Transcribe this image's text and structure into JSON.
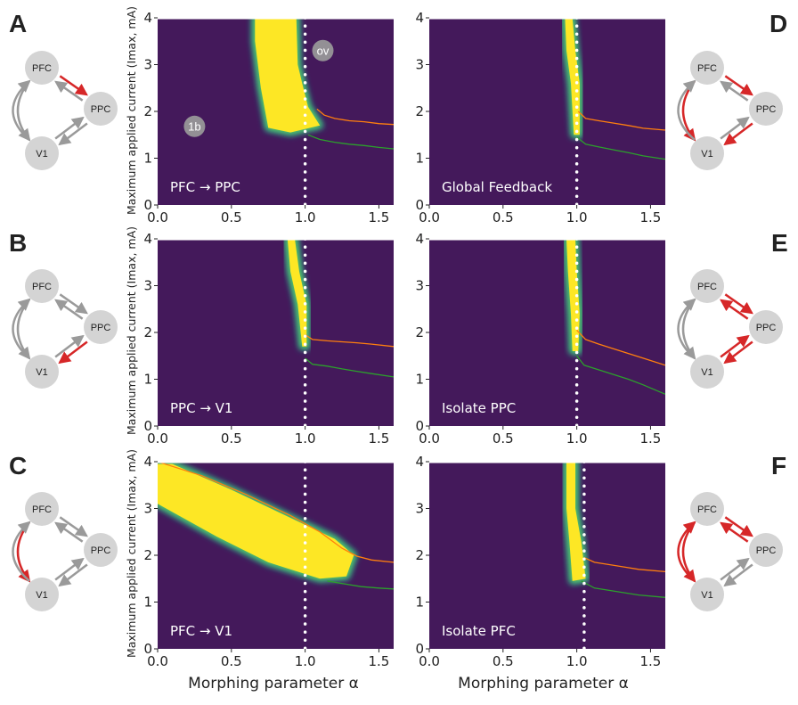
{
  "figure": {
    "xlabel_left": "Morphing parameter α",
    "xlabel_right": "Morphing parameter α",
    "ylabel": "Maximum applied current (Imax, mA)",
    "colors": {
      "background": "#44195b",
      "blob_core": "#fde725",
      "blob_mid": "#5ec962",
      "blob_edge": "#21918c",
      "orange_line": "#ff7f0e",
      "green_line": "#2ca02c",
      "dashed_line": "#ffffff",
      "node_fill": "#d4d4d4",
      "arrow_grey": "#9a9a9a",
      "arrow_red": "#d62728"
    }
  },
  "chart_data": [
    {
      "panel": "A",
      "type": "heatmap",
      "label": "PFC → PPC",
      "xlim": [
        0,
        1.6
      ],
      "ylim": [
        0,
        4
      ],
      "xticks": [
        "0.0",
        "0.5",
        "1.0",
        "1.5"
      ],
      "yticks": [
        "0",
        "1",
        "2",
        "3",
        "4"
      ],
      "dashed_x": 1.0,
      "markers": [
        {
          "text": "ov",
          "x": 1.12,
          "y": 3.3
        },
        {
          "text": "1b",
          "x": 0.25,
          "y": 1.68
        }
      ],
      "blob": [
        [
          0.66,
          4.0
        ],
        [
          0.77,
          4.0
        ],
        [
          0.94,
          4.0
        ],
        [
          0.95,
          3.0
        ],
        [
          0.98,
          2.6
        ],
        [
          1.02,
          2.1
        ],
        [
          1.1,
          1.7
        ],
        [
          0.9,
          1.55
        ],
        [
          0.75,
          1.65
        ],
        [
          0.7,
          2.5
        ],
        [
          0.66,
          3.5
        ]
      ],
      "orange": [
        [
          1.08,
          2.05
        ],
        [
          1.13,
          1.92
        ],
        [
          1.2,
          1.85
        ],
        [
          1.3,
          1.8
        ],
        [
          1.4,
          1.78
        ],
        [
          1.5,
          1.74
        ],
        [
          1.6,
          1.72
        ]
      ],
      "green": [
        [
          1.02,
          1.5
        ],
        [
          1.1,
          1.4
        ],
        [
          1.2,
          1.34
        ],
        [
          1.3,
          1.3
        ],
        [
          1.4,
          1.27
        ],
        [
          1.5,
          1.23
        ],
        [
          1.6,
          1.2
        ]
      ],
      "diagram": {
        "red": [
          "PFC-PPC"
        ],
        "double_red": []
      }
    },
    {
      "panel": "D",
      "type": "heatmap",
      "label": "Global Feedback",
      "xlim": [
        0,
        1.6
      ],
      "ylim": [
        0,
        4
      ],
      "xticks": [
        "0.0",
        "0.5",
        "1.0",
        "1.5"
      ],
      "yticks": [
        "0",
        "1",
        "2",
        "3",
        "4"
      ],
      "dashed_x": 1.0,
      "markers": [],
      "blob": [
        [
          0.92,
          4.0
        ],
        [
          0.97,
          4.0
        ],
        [
          0.99,
          3.3
        ],
        [
          1.02,
          2.6
        ],
        [
          1.02,
          1.5
        ],
        [
          0.98,
          1.5
        ],
        [
          0.96,
          2.6
        ],
        [
          0.93,
          3.3
        ]
      ],
      "orange": [
        [
          1.01,
          2.0
        ],
        [
          1.06,
          1.85
        ],
        [
          1.15,
          1.8
        ],
        [
          1.25,
          1.75
        ],
        [
          1.35,
          1.7
        ],
        [
          1.45,
          1.64
        ],
        [
          1.6,
          1.6
        ]
      ],
      "green": [
        [
          1.0,
          1.45
        ],
        [
          1.06,
          1.3
        ],
        [
          1.15,
          1.24
        ],
        [
          1.25,
          1.18
        ],
        [
          1.35,
          1.12
        ],
        [
          1.45,
          1.05
        ],
        [
          1.6,
          0.98
        ]
      ],
      "diagram": {
        "red": [
          "PFC-PPC",
          "PPC-V1",
          "PFC-V1"
        ],
        "double_red": []
      }
    },
    {
      "panel": "B",
      "type": "heatmap",
      "label": "PPC → V1",
      "xlim": [
        0,
        1.6
      ],
      "ylim": [
        0,
        4
      ],
      "xticks": [
        "0.0",
        "0.5",
        "1.0",
        "1.5"
      ],
      "yticks": [
        "0",
        "1",
        "2",
        "3",
        "4"
      ],
      "dashed_x": 1.0,
      "markers": [],
      "blob": [
        [
          0.88,
          4.0
        ],
        [
          0.93,
          4.0
        ],
        [
          0.96,
          3.3
        ],
        [
          1.01,
          2.6
        ],
        [
          1.01,
          1.7
        ],
        [
          0.98,
          1.7
        ],
        [
          0.95,
          2.6
        ],
        [
          0.9,
          3.3
        ]
      ],
      "orange": [
        [
          1.0,
          1.95
        ],
        [
          1.05,
          1.85
        ],
        [
          1.15,
          1.82
        ],
        [
          1.25,
          1.8
        ],
        [
          1.35,
          1.78
        ],
        [
          1.45,
          1.75
        ],
        [
          1.6,
          1.7
        ]
      ],
      "green": [
        [
          1.0,
          1.45
        ],
        [
          1.05,
          1.32
        ],
        [
          1.15,
          1.28
        ],
        [
          1.25,
          1.22
        ],
        [
          1.35,
          1.17
        ],
        [
          1.45,
          1.12
        ],
        [
          1.6,
          1.05
        ]
      ],
      "diagram": {
        "red": [
          "PPC-V1"
        ],
        "double_red": []
      }
    },
    {
      "panel": "E",
      "type": "heatmap",
      "label": "Isolate PPC",
      "xlim": [
        0,
        1.6
      ],
      "ylim": [
        0,
        4
      ],
      "xticks": [
        "0.0",
        "0.5",
        "1.0",
        "1.5"
      ],
      "yticks": [
        "0",
        "1",
        "2",
        "3",
        "4"
      ],
      "dashed_x": 1.0,
      "markers": [],
      "blob": [
        [
          0.93,
          4.0
        ],
        [
          0.99,
          4.0
        ],
        [
          1.0,
          3.3
        ],
        [
          1.02,
          2.4
        ],
        [
          1.01,
          1.6
        ],
        [
          0.97,
          1.6
        ],
        [
          0.96,
          2.4
        ],
        [
          0.94,
          3.3
        ]
      ],
      "orange": [
        [
          1.0,
          2.05
        ],
        [
          1.06,
          1.85
        ],
        [
          1.15,
          1.75
        ],
        [
          1.25,
          1.65
        ],
        [
          1.35,
          1.55
        ],
        [
          1.45,
          1.45
        ],
        [
          1.6,
          1.3
        ]
      ],
      "green": [
        [
          1.0,
          1.5
        ],
        [
          1.05,
          1.3
        ],
        [
          1.15,
          1.2
        ],
        [
          1.25,
          1.1
        ],
        [
          1.35,
          1.0
        ],
        [
          1.45,
          0.88
        ],
        [
          1.6,
          0.68
        ]
      ],
      "diagram": {
        "red": [],
        "double_red": [
          "PFC-PPC",
          "PPC-V1"
        ]
      }
    },
    {
      "panel": "C",
      "type": "heatmap",
      "label": "PFC → V1",
      "xlim": [
        0,
        1.6
      ],
      "ylim": [
        0,
        4
      ],
      "xticks": [
        "0.0",
        "0.5",
        "1.0",
        "1.5"
      ],
      "yticks": [
        "0",
        "1",
        "2",
        "3",
        "4"
      ],
      "dashed_x": 1.0,
      "markers": [],
      "blob": [
        [
          0.0,
          3.95
        ],
        [
          0.1,
          3.95
        ],
        [
          0.5,
          3.4
        ],
        [
          0.9,
          2.8
        ],
        [
          1.2,
          2.35
        ],
        [
          1.33,
          2.0
        ],
        [
          1.28,
          1.55
        ],
        [
          1.1,
          1.5
        ],
        [
          0.75,
          1.85
        ],
        [
          0.4,
          2.4
        ],
        [
          0.0,
          3.1
        ]
      ],
      "orange": [
        [
          0.0,
          4.0
        ],
        [
          0.3,
          3.7
        ],
        [
          0.6,
          3.3
        ],
        [
          0.9,
          2.85
        ],
        [
          1.1,
          2.5
        ],
        [
          1.25,
          2.15
        ],
        [
          1.35,
          1.98
        ],
        [
          1.45,
          1.9
        ],
        [
          1.6,
          1.85
        ]
      ],
      "green": [
        [
          1.15,
          1.45
        ],
        [
          1.28,
          1.38
        ],
        [
          1.38,
          1.33
        ],
        [
          1.5,
          1.3
        ],
        [
          1.6,
          1.28
        ]
      ],
      "diagram": {
        "red": [
          "PFC-V1"
        ],
        "double_red": []
      }
    },
    {
      "panel": "F",
      "type": "heatmap",
      "label": "Isolate PFC",
      "xlim": [
        0,
        1.6
      ],
      "ylim": [
        0,
        4
      ],
      "xticks": [
        "0.0",
        "0.5",
        "1.0",
        "1.5"
      ],
      "yticks": [
        "0",
        "1",
        "2",
        "3",
        "4"
      ],
      "dashed_x": 1.05,
      "markers": [],
      "blob": [
        [
          0.93,
          4.0
        ],
        [
          0.99,
          4.0
        ],
        [
          0.99,
          3.0
        ],
        [
          1.03,
          2.3
        ],
        [
          1.06,
          1.5
        ],
        [
          0.97,
          1.45
        ],
        [
          0.95,
          2.3
        ],
        [
          0.93,
          3.0
        ]
      ],
      "orange": [
        [
          1.05,
          1.95
        ],
        [
          1.12,
          1.85
        ],
        [
          1.22,
          1.8
        ],
        [
          1.32,
          1.75
        ],
        [
          1.42,
          1.7
        ],
        [
          1.6,
          1.65
        ]
      ],
      "green": [
        [
          1.03,
          1.45
        ],
        [
          1.12,
          1.3
        ],
        [
          1.22,
          1.25
        ],
        [
          1.32,
          1.2
        ],
        [
          1.42,
          1.15
        ],
        [
          1.6,
          1.1
        ]
      ],
      "diagram": {
        "red": [],
        "double_red": [
          "PFC-PPC",
          "PFC-V1"
        ]
      }
    }
  ]
}
